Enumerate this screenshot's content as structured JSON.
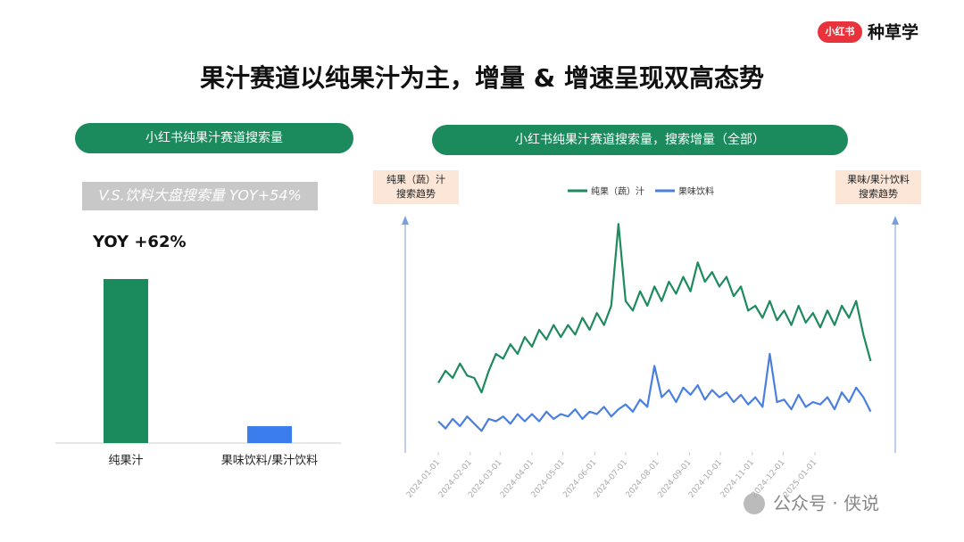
{
  "header": {
    "logo": "小红书",
    "brand": "种草学",
    "title": "果汁赛道以纯果汁为主，增量 & 增速呈现双高态势"
  },
  "watermark": "公众号 · 侠说",
  "chart_data": [
    {
      "type": "bar",
      "title": "小红书纯果汁赛道搜索量",
      "subtitle": "V.S.饮料大盘搜索量 YOY+54%",
      "annotation": "YOY +62%",
      "categories": [
        "纯果汁",
        "果味饮料/果汁饮料"
      ],
      "values": [
        100,
        10.3
      ],
      "colors": [
        "#1b8a5c",
        "#3b7ded"
      ]
    },
    {
      "type": "line",
      "title": "小红书纯果汁赛道搜索量，搜索增量（全部）",
      "ylabel": [
        "纯果（蔬）汁",
        "搜索趋势"
      ],
      "y2label": [
        "果味/果汁饮料",
        "搜索趋势"
      ],
      "xlim": [
        "2023-12-25",
        "2025-02-28"
      ],
      "xticks": [
        "2024-01-01",
        "2024-02-01",
        "2024-03-01",
        "2024-04-01",
        "2024-05-01",
        "2024-06-01",
        "2024-07-01",
        "2024-08-01",
        "2024-09-01",
        "2024-10-01",
        "2024-11-01",
        "2024-12-01",
        "2025-01-01"
      ],
      "ylim": [
        0,
        100
      ],
      "y2lim": [
        0,
        100
      ],
      "x": [
        "2024-01-01",
        "2024-01-08",
        "2024-01-15",
        "2024-01-22",
        "2024-01-29",
        "2024-02-05",
        "2024-02-12",
        "2024-02-19",
        "2024-02-26",
        "2024-03-04",
        "2024-03-11",
        "2024-03-18",
        "2024-03-25",
        "2024-04-01",
        "2024-04-08",
        "2024-04-15",
        "2024-04-22",
        "2024-04-29",
        "2024-05-06",
        "2024-05-13",
        "2024-05-20",
        "2024-05-27",
        "2024-06-03",
        "2024-06-10",
        "2024-06-17",
        "2024-06-24",
        "2024-07-01",
        "2024-07-08",
        "2024-07-15",
        "2024-07-22",
        "2024-07-29",
        "2024-08-05",
        "2024-08-12",
        "2024-08-19",
        "2024-08-26",
        "2024-09-02",
        "2024-09-09",
        "2024-09-16",
        "2024-09-23",
        "2024-09-30",
        "2024-10-07",
        "2024-10-14",
        "2024-10-21",
        "2024-10-28",
        "2024-11-04",
        "2024-11-11",
        "2024-11-18",
        "2024-11-25",
        "2024-12-02",
        "2024-12-09",
        "2024-12-16",
        "2024-12-23",
        "2024-12-30",
        "2025-01-06",
        "2025-01-13",
        "2025-01-20",
        "2025-01-27",
        "2025-02-03",
        "2025-02-10",
        "2025-02-17",
        "2025-02-24"
      ],
      "series": [
        {
          "name": "纯果（蔬）汁",
          "color": "#1e8a5e",
          "values": [
            28,
            33,
            30,
            36,
            31,
            30,
            24,
            33,
            40,
            38,
            44,
            40,
            47,
            43,
            50,
            46,
            52,
            47,
            52,
            48,
            55,
            50,
            57,
            52,
            60,
            94,
            62,
            58,
            66,
            60,
            68,
            62,
            70,
            65,
            72,
            66,
            78,
            70,
            74,
            68,
            72,
            64,
            68,
            58,
            60,
            55,
            62,
            54,
            58,
            52,
            60,
            53,
            57,
            51,
            58,
            52,
            60,
            55,
            62,
            48,
            37
          ]
        },
        {
          "name": "果味饮料",
          "color": "#4a7fe0",
          "axis": "y2",
          "values": [
            12,
            9,
            13,
            10,
            14,
            11,
            8,
            13,
            12,
            14,
            11,
            15,
            12,
            15,
            12,
            16,
            13,
            15,
            14,
            17,
            13,
            16,
            15,
            18,
            14,
            17,
            19,
            16,
            21,
            18,
            35,
            22,
            25,
            20,
            26,
            23,
            27,
            21,
            25,
            22,
            24,
            20,
            23,
            19,
            22,
            18,
            40,
            20,
            21,
            17,
            23,
            18,
            20,
            19,
            22,
            17,
            24,
            20,
            26,
            22,
            16
          ]
        }
      ]
    }
  ]
}
